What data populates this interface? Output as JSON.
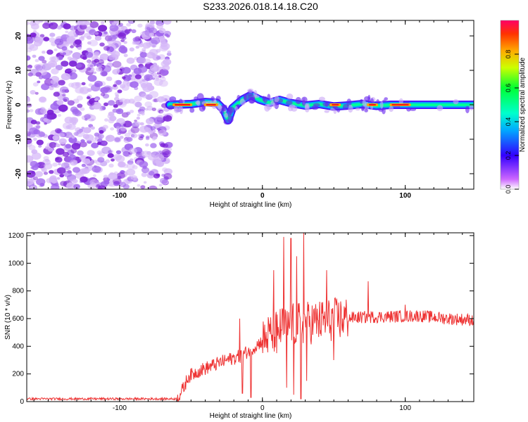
{
  "title": "S233.2026.018.14.18.C20",
  "colors": {
    "snr_line": "#ee3333",
    "axis": "#000000",
    "noise": "#8a3ce8"
  },
  "colorbar": {
    "label": "Normalized spectral amplitude",
    "ticks": [
      "0.0",
      "0.2",
      "0.4",
      "0.6",
      "0.8"
    ],
    "range": [
      0,
      1
    ]
  },
  "chart_data": [
    {
      "type": "heatmap",
      "title": "S233.2026.018.14.18.C20",
      "xlabel": "Height of straight line (km)",
      "ylabel": "Frequency (Hz)",
      "xlim": [
        -165,
        148
      ],
      "ylim": [
        -24.5,
        24.5
      ],
      "xticks": [
        {
          "v": -100,
          "label": "-100"
        },
        {
          "v": 0,
          "label": "0"
        },
        {
          "v": 100,
          "label": "100"
        }
      ],
      "yticks": [
        {
          "v": -20,
          "label": "-20"
        },
        {
          "v": -10,
          "label": "-10"
        },
        {
          "v": 0,
          "label": "0"
        },
        {
          "v": 10,
          "label": "10"
        },
        {
          "v": 20,
          "label": "20"
        }
      ],
      "noise_region_x": [
        -165,
        -65
      ],
      "signal_start_x": -65,
      "ridge": [
        [
          -65,
          0
        ],
        [
          -50,
          0.2
        ],
        [
          -40,
          0.8
        ],
        [
          -32,
          0.6
        ],
        [
          -27,
          -1.5
        ],
        [
          -24,
          -4.5
        ],
        [
          -21,
          -1
        ],
        [
          -14,
          1.5
        ],
        [
          -8,
          2.8
        ],
        [
          -2,
          1.5
        ],
        [
          5,
          0.6
        ],
        [
          12,
          1.4
        ],
        [
          20,
          0.5
        ],
        [
          30,
          -0.2
        ],
        [
          40,
          0.2
        ],
        [
          50,
          -0.5
        ],
        [
          60,
          -0.2
        ],
        [
          70,
          0.2
        ],
        [
          80,
          -0.3
        ],
        [
          90,
          0
        ],
        [
          110,
          0
        ],
        [
          148,
          0
        ]
      ]
    },
    {
      "type": "line",
      "xlabel": "Height of straight line (km)",
      "ylabel": "SNR (10 * v/v)",
      "xlim": [
        -165,
        148
      ],
      "ylim": [
        0,
        1220
      ],
      "xticks": [
        {
          "v": -100,
          "label": "-100"
        },
        {
          "v": 0,
          "label": "0"
        },
        {
          "v": 100,
          "label": "100"
        }
      ],
      "yticks": [
        {
          "v": 0,
          "label": "0"
        },
        {
          "v": 200,
          "label": "200"
        },
        {
          "v": 400,
          "label": "400"
        },
        {
          "v": 600,
          "label": "600"
        },
        {
          "v": 800,
          "label": "800"
        },
        {
          "v": 1000,
          "label": "1000"
        },
        {
          "v": 1200,
          "label": "1200"
        }
      ],
      "trend": [
        [
          -165,
          20
        ],
        [
          -60,
          20
        ],
        [
          -55,
          100
        ],
        [
          -52,
          180
        ],
        [
          -45,
          220
        ],
        [
          -35,
          260
        ],
        [
          -25,
          300
        ],
        [
          -15,
          330
        ],
        [
          -5,
          400
        ],
        [
          5,
          480
        ],
        [
          15,
          540
        ],
        [
          25,
          560
        ],
        [
          40,
          580
        ],
        [
          55,
          600
        ],
        [
          70,
          610
        ],
        [
          90,
          615
        ],
        [
          110,
          620
        ],
        [
          130,
          600
        ],
        [
          148,
          590
        ]
      ],
      "spikes": [
        [
          -16,
          600
        ],
        [
          -14,
          60
        ],
        [
          -8,
          30
        ],
        [
          8,
          950
        ],
        [
          10,
          350
        ],
        [
          15,
          1190
        ],
        [
          17,
          100
        ],
        [
          20,
          1180
        ],
        [
          22,
          50
        ],
        [
          24,
          1050
        ],
        [
          27,
          20
        ],
        [
          29,
          1220
        ],
        [
          31,
          150
        ],
        [
          45,
          950
        ],
        [
          50,
          300
        ],
        [
          74,
          870
        ],
        [
          100,
          700
        ]
      ]
    }
  ]
}
